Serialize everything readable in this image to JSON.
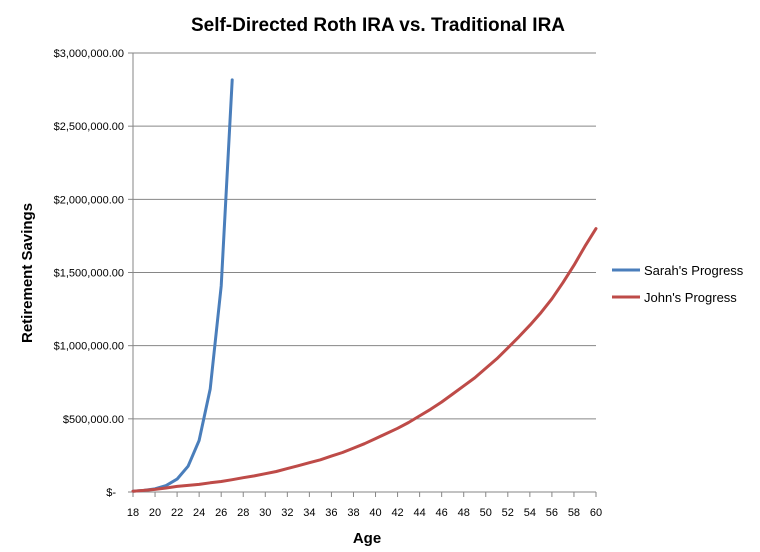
{
  "chart_data": {
    "type": "line",
    "title": "Self-Directed Roth IRA vs. Traditional IRA",
    "xlabel": "Age",
    "ylabel": "Retirement Savings",
    "xlim": [
      18,
      60
    ],
    "ylim": [
      0,
      3000000
    ],
    "x_ticks": [
      "18",
      "20",
      "22",
      "24",
      "26",
      "28",
      "30",
      "32",
      "34",
      "36",
      "38",
      "40",
      "42",
      "44",
      "46",
      "48",
      "50",
      "52",
      "54",
      "56",
      "58",
      "60"
    ],
    "y_ticks": [
      {
        "value": 0,
        "label": "$-"
      },
      {
        "value": 500000,
        "label": "$500,000.00"
      },
      {
        "value": 1000000,
        "label": "$1,000,000.00"
      },
      {
        "value": 1500000,
        "label": "$1,500,000.00"
      },
      {
        "value": 2000000,
        "label": "$2,000,000.00"
      },
      {
        "value": 2500000,
        "label": "$2,500,000.00"
      },
      {
        "value": 3000000,
        "label": "$3,000,000.00"
      }
    ],
    "grid": "horizontal",
    "legend": "right",
    "series": [
      {
        "name": "Sarah's Progress",
        "color": "#4a7ebb",
        "x": [
          18,
          19,
          20,
          21,
          22,
          23,
          24,
          25,
          26,
          27
        ],
        "y": [
          5500,
          11000,
          22000,
          44000,
          88000,
          176000,
          352000,
          704000,
          1408000,
          2816000
        ]
      },
      {
        "name": "John's Progress",
        "color": "#be4b48",
        "x": [
          18,
          19,
          20,
          21,
          22,
          23,
          24,
          25,
          26,
          27,
          28,
          29,
          30,
          31,
          32,
          33,
          34,
          35,
          36,
          37,
          38,
          39,
          40,
          41,
          42,
          43,
          44,
          45,
          46,
          47,
          48,
          49,
          50,
          51,
          52,
          53,
          54,
          55,
          56,
          57,
          58,
          59,
          60
        ],
        "y": [
          5500,
          11000,
          18000,
          27000,
          38000,
          45000,
          52000,
          63000,
          72000,
          84000,
          98000,
          110000,
          125000,
          140000,
          160000,
          180000,
          200000,
          220000,
          245000,
          270000,
          300000,
          330000,
          365000,
          400000,
          435000,
          475000,
          520000,
          565000,
          615000,
          670000,
          725000,
          780000,
          845000,
          910000,
          985000,
          1060000,
          1140000,
          1225000,
          1320000,
          1430000,
          1550000,
          1680000,
          1800000
        ]
      }
    ]
  }
}
